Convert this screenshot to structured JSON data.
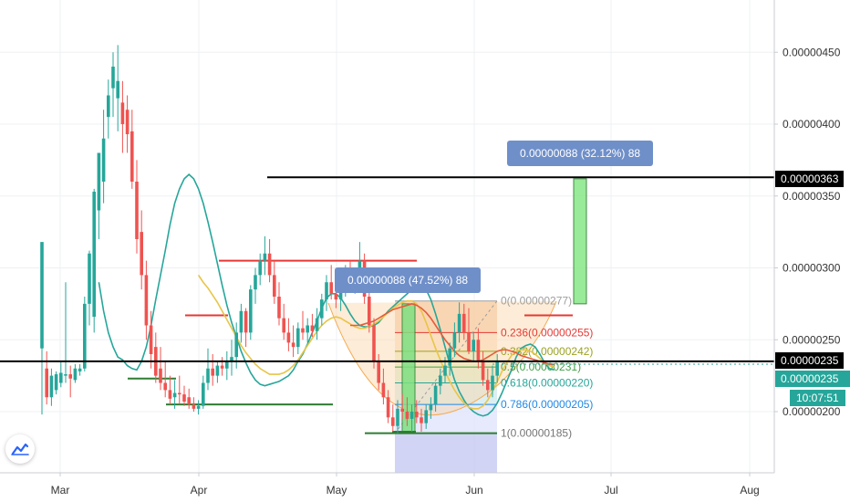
{
  "chart_data": {
    "type": "candlestick",
    "symbol_scale": "price",
    "x_axis": {
      "labels": [
        "Mar",
        "Apr",
        "May",
        "Jun",
        "Jul",
        "Aug"
      ]
    },
    "y_axis": {
      "position": "right",
      "ticks": [
        "0.00000450",
        "0.00000400",
        "0.00000350",
        "0.00000300",
        "0.00000250",
        "0.00000200"
      ],
      "range": [
        1.61e-06,
        4.79e-06
      ]
    },
    "candles": [
      {
        "o": 2.44,
        "h": 3.18,
        "l": 1.98,
        "c": 3.18
      },
      {
        "o": 2.3,
        "h": 2.42,
        "l": 2.05,
        "c": 2.1
      },
      {
        "o": 2.1,
        "h": 2.3,
        "l": 2.04,
        "c": 2.25
      },
      {
        "o": 2.15,
        "h": 2.28,
        "l": 2.12,
        "c": 2.26
      },
      {
        "o": 2.2,
        "h": 2.35,
        "l": 2.17,
        "c": 2.27
      },
      {
        "o": 2.25,
        "h": 2.9,
        "l": 2.2,
        "c": 2.26
      },
      {
        "o": 2.26,
        "h": 2.32,
        "l": 2.1,
        "c": 2.23
      },
      {
        "o": 2.22,
        "h": 2.33,
        "l": 2.2,
        "c": 2.3
      },
      {
        "o": 2.28,
        "h": 2.33,
        "l": 2.25,
        "c": 2.3
      },
      {
        "o": 2.3,
        "h": 2.8,
        "l": 2.28,
        "c": 2.75
      },
      {
        "o": 2.75,
        "h": 3.12,
        "l": 2.6,
        "c": 3.1
      },
      {
        "o": 2.66,
        "h": 3.55,
        "l": 2.55,
        "c": 3.53
      },
      {
        "o": 3.4,
        "h": 3.8,
        "l": 3.2,
        "c": 3.8
      },
      {
        "o": 3.6,
        "h": 4.1,
        "l": 3.45,
        "c": 3.9
      },
      {
        "o": 4.05,
        "h": 4.31,
        "l": 3.9,
        "c": 4.2
      },
      {
        "o": 4.25,
        "h": 4.5,
        "l": 4.05,
        "c": 4.4
      },
      {
        "o": 4.18,
        "h": 4.55,
        "l": 3.95,
        "c": 4.3
      },
      {
        "o": 4.15,
        "h": 4.3,
        "l": 3.8,
        "c": 4.0
      },
      {
        "o": 4.1,
        "h": 4.2,
        "l": 3.8,
        "c": 3.93
      },
      {
        "o": 3.95,
        "h": 4.1,
        "l": 3.55,
        "c": 3.6
      },
      {
        "o": 3.6,
        "h": 3.75,
        "l": 3.1,
        "c": 3.2
      },
      {
        "o": 3.25,
        "h": 3.4,
        "l": 2.85,
        "c": 2.95
      },
      {
        "o": 2.95,
        "h": 3.05,
        "l": 2.5,
        "c": 2.6
      },
      {
        "o": 2.6,
        "h": 2.7,
        "l": 2.3,
        "c": 2.4
      },
      {
        "o": 2.45,
        "h": 2.55,
        "l": 2.2,
        "c": 2.25
      },
      {
        "o": 2.3,
        "h": 2.45,
        "l": 2.15,
        "c": 2.2
      },
      {
        "o": 2.2,
        "h": 2.35,
        "l": 2.1,
        "c": 2.15
      },
      {
        "o": 2.15,
        "h": 2.25,
        "l": 2.05,
        "c": 2.09
      },
      {
        "o": 2.1,
        "h": 2.22,
        "l": 2.02,
        "c": 2.13
      },
      {
        "o": 2.13,
        "h": 2.25,
        "l": 2.05,
        "c": 2.12
      },
      {
        "o": 2.12,
        "h": 2.18,
        "l": 2.04,
        "c": 2.07
      },
      {
        "o": 2.1,
        "h": 2.16,
        "l": 2.02,
        "c": 2.05
      },
      {
        "o": 2.05,
        "h": 2.1,
        "l": 2.0,
        "c": 2.02
      },
      {
        "o": 2.02,
        "h": 2.08,
        "l": 1.98,
        "c": 2.04
      },
      {
        "o": 2.04,
        "h": 2.25,
        "l": 2.02,
        "c": 2.2
      },
      {
        "o": 2.2,
        "h": 2.44,
        "l": 2.15,
        "c": 2.3
      },
      {
        "o": 2.3,
        "h": 2.4,
        "l": 2.18,
        "c": 2.25
      },
      {
        "o": 2.25,
        "h": 2.35,
        "l": 2.2,
        "c": 2.32
      },
      {
        "o": 2.32,
        "h": 2.38,
        "l": 2.25,
        "c": 2.3
      },
      {
        "o": 2.3,
        "h": 2.42,
        "l": 2.22,
        "c": 2.35
      },
      {
        "o": 2.35,
        "h": 2.5,
        "l": 2.25,
        "c": 2.38
      },
      {
        "o": 2.38,
        "h": 2.62,
        "l": 2.3,
        "c": 2.55
      },
      {
        "o": 2.55,
        "h": 2.75,
        "l": 2.48,
        "c": 2.7
      },
      {
        "o": 2.7,
        "h": 2.72,
        "l": 2.45,
        "c": 2.55
      },
      {
        "o": 2.55,
        "h": 2.88,
        "l": 2.5,
        "c": 2.85
      },
      {
        "o": 2.85,
        "h": 3.0,
        "l": 2.75,
        "c": 2.95
      },
      {
        "o": 2.95,
        "h": 3.1,
        "l": 2.88,
        "c": 3.05
      },
      {
        "o": 3.05,
        "h": 3.22,
        "l": 2.95,
        "c": 3.1
      },
      {
        "o": 3.1,
        "h": 3.2,
        "l": 2.9,
        "c": 2.95
      },
      {
        "o": 2.95,
        "h": 3.05,
        "l": 2.75,
        "c": 2.8
      },
      {
        "o": 2.8,
        "h": 2.9,
        "l": 2.6,
        "c": 2.65
      },
      {
        "o": 2.65,
        "h": 2.75,
        "l": 2.5,
        "c": 2.55
      },
      {
        "o": 2.55,
        "h": 2.65,
        "l": 2.42,
        "c": 2.48
      },
      {
        "o": 2.48,
        "h": 2.6,
        "l": 2.38,
        "c": 2.45
      },
      {
        "o": 2.45,
        "h": 2.62,
        "l": 2.4,
        "c": 2.58
      },
      {
        "o": 2.58,
        "h": 2.7,
        "l": 2.5,
        "c": 2.55
      },
      {
        "o": 2.55,
        "h": 2.65,
        "l": 2.48,
        "c": 2.6
      },
      {
        "o": 2.6,
        "h": 2.68,
        "l": 2.52,
        "c": 2.56
      },
      {
        "o": 2.56,
        "h": 2.72,
        "l": 2.5,
        "c": 2.65
      },
      {
        "o": 2.65,
        "h": 2.82,
        "l": 2.6,
        "c": 2.78
      },
      {
        "o": 2.78,
        "h": 2.95,
        "l": 2.7,
        "c": 2.9
      },
      {
        "o": 2.9,
        "h": 3.02,
        "l": 2.78,
        "c": 2.82
      },
      {
        "o": 2.82,
        "h": 2.95,
        "l": 2.72,
        "c": 2.78
      },
      {
        "o": 2.78,
        "h": 2.9,
        "l": 2.7,
        "c": 2.85
      },
      {
        "o": 2.85,
        "h": 3.02,
        "l": 2.8,
        "c": 2.96
      },
      {
        "o": 2.96,
        "h": 3.05,
        "l": 2.85,
        "c": 2.9
      },
      {
        "o": 2.9,
        "h": 3.0,
        "l": 2.82,
        "c": 2.92
      },
      {
        "o": 2.92,
        "h": 3.18,
        "l": 2.88,
        "c": 3.05
      },
      {
        "o": 3.05,
        "h": 3.1,
        "l": 2.75,
        "c": 2.8
      },
      {
        "o": 2.8,
        "h": 2.9,
        "l": 2.55,
        "c": 2.6
      },
      {
        "o": 2.6,
        "h": 2.65,
        "l": 2.3,
        "c": 2.35
      },
      {
        "o": 2.35,
        "h": 2.4,
        "l": 2.15,
        "c": 2.2
      },
      {
        "o": 2.2,
        "h": 2.3,
        "l": 2.05,
        "c": 2.1
      },
      {
        "o": 2.1,
        "h": 2.15,
        "l": 1.92,
        "c": 1.96
      },
      {
        "o": 1.96,
        "h": 2.05,
        "l": 1.86,
        "c": 1.9
      },
      {
        "o": 1.9,
        "h": 2.08,
        "l": 1.85,
        "c": 2.02
      },
      {
        "o": 2.02,
        "h": 2.12,
        "l": 1.95,
        "c": 2.0
      },
      {
        "o": 2.0,
        "h": 2.1,
        "l": 1.9,
        "c": 1.95
      },
      {
        "o": 1.95,
        "h": 2.05,
        "l": 1.86,
        "c": 2.0
      },
      {
        "o": 2.0,
        "h": 2.08,
        "l": 1.92,
        "c": 1.96
      },
      {
        "o": 1.96,
        "h": 2.02,
        "l": 1.86,
        "c": 1.92
      },
      {
        "o": 1.92,
        "h": 2.05,
        "l": 1.88,
        "c": 2.01
      },
      {
        "o": 2.01,
        "h": 2.1,
        "l": 1.95,
        "c": 2.05
      },
      {
        "o": 2.05,
        "h": 2.2,
        "l": 2.0,
        "c": 2.18
      },
      {
        "o": 2.18,
        "h": 2.3,
        "l": 2.12,
        "c": 2.25
      },
      {
        "o": 2.25,
        "h": 2.38,
        "l": 2.2,
        "c": 2.32
      },
      {
        "o": 2.32,
        "h": 2.48,
        "l": 2.25,
        "c": 2.44
      },
      {
        "o": 2.44,
        "h": 2.62,
        "l": 2.38,
        "c": 2.55
      },
      {
        "o": 2.55,
        "h": 2.76,
        "l": 2.48,
        "c": 2.68
      },
      {
        "o": 2.68,
        "h": 2.75,
        "l": 2.5,
        "c": 2.55
      },
      {
        "o": 2.55,
        "h": 2.72,
        "l": 2.4,
        "c": 2.42
      },
      {
        "o": 2.42,
        "h": 2.55,
        "l": 2.35,
        "c": 2.5
      },
      {
        "o": 2.5,
        "h": 2.58,
        "l": 2.3,
        "c": 2.35
      },
      {
        "o": 2.35,
        "h": 2.42,
        "l": 2.18,
        "c": 2.22
      },
      {
        "o": 2.22,
        "h": 2.3,
        "l": 2.1,
        "c": 2.15
      },
      {
        "o": 2.15,
        "h": 2.32,
        "l": 2.1,
        "c": 2.25
      },
      {
        "o": 2.25,
        "h": 2.4,
        "l": 2.2,
        "c": 2.35
      }
    ],
    "moving_averages": [
      {
        "color": "#26a69a",
        "values": [
          2.9,
          2.7,
          2.55,
          2.45,
          2.38,
          2.36,
          2.32,
          2.3,
          2.29,
          2.35,
          2.45,
          2.6,
          2.78,
          2.95,
          3.12,
          3.3,
          3.45,
          3.55,
          3.62,
          3.65,
          3.62,
          3.55,
          3.45,
          3.32,
          3.18,
          3.03,
          2.88,
          2.74,
          2.62,
          2.52,
          2.42,
          2.34,
          2.27,
          2.22,
          2.19,
          2.18,
          2.19,
          2.2,
          2.21,
          2.23,
          2.25,
          2.29,
          2.35,
          2.4,
          2.47,
          2.55,
          2.63,
          2.72,
          2.79,
          2.82,
          2.82,
          2.79,
          2.74,
          2.68,
          2.63,
          2.6,
          2.59,
          2.59,
          2.6,
          2.62,
          2.66,
          2.7,
          2.73,
          2.76,
          2.79,
          2.82,
          2.85,
          2.88,
          2.88,
          2.85,
          2.78,
          2.68,
          2.57,
          2.45,
          2.33,
          2.22,
          2.14,
          2.08,
          2.03,
          2.0,
          1.98,
          1.97,
          1.98,
          2.01,
          2.06,
          2.13,
          2.21,
          2.29,
          2.38,
          2.44,
          2.46,
          2.47,
          2.45,
          2.4,
          2.34,
          2.3,
          2.29
        ]
      },
      {
        "color": "#e8c547",
        "values": [
          null,
          null,
          null,
          null,
          null,
          null,
          null,
          null,
          null,
          null,
          null,
          null,
          null,
          null,
          null,
          null,
          null,
          null,
          null,
          null,
          null,
          2.95,
          2.9,
          2.86,
          2.81,
          2.76,
          2.7,
          2.64,
          2.58,
          2.52,
          2.46,
          2.41,
          2.37,
          2.33,
          2.3,
          2.28,
          2.26,
          2.26,
          2.26,
          2.27,
          2.29,
          2.32,
          2.36,
          2.41,
          2.46,
          2.51,
          2.56,
          2.6,
          2.63,
          2.65,
          2.66,
          2.65,
          2.63,
          2.61,
          2.59,
          2.58,
          2.58,
          2.59,
          2.61,
          2.63,
          2.66,
          2.69,
          2.72,
          2.74,
          2.76,
          2.77,
          2.77,
          2.75,
          2.7,
          2.62,
          2.53,
          2.44,
          2.36,
          2.28,
          2.21,
          2.15,
          2.1,
          2.06,
          2.03,
          2.02,
          2.02,
          2.04,
          2.08,
          2.14,
          2.21,
          2.28,
          2.34,
          2.39,
          2.42,
          2.43,
          2.43,
          2.42,
          2.4,
          2.37,
          2.34,
          2.32,
          2.31
        ]
      },
      {
        "color": "#e65a3c",
        "values": [
          null,
          null,
          null,
          null,
          null,
          null,
          null,
          null,
          null,
          null,
          null,
          null,
          null,
          null,
          null,
          null,
          null,
          null,
          null,
          null,
          null,
          null,
          null,
          null,
          null,
          null,
          null,
          null,
          null,
          null,
          null,
          null,
          null,
          null,
          null,
          null,
          null,
          null,
          null,
          null,
          null,
          null,
          null,
          null,
          null,
          null,
          null,
          null,
          null,
          null,
          null,
          null,
          null,
          2.6,
          2.6,
          2.6,
          2.61,
          2.62,
          2.63,
          2.65,
          2.67,
          2.69,
          2.71,
          2.72,
          2.73,
          2.74,
          2.75,
          2.74,
          2.72,
          2.69,
          2.65,
          2.6,
          2.55,
          2.5,
          2.46,
          2.42,
          2.39,
          2.37,
          2.36,
          2.35,
          2.35,
          2.36,
          2.38,
          2.4,
          2.42,
          2.43,
          2.43,
          2.42,
          2.41,
          2.39,
          2.38,
          2.37,
          2.36,
          2.35,
          2.34,
          2.33,
          2.33
        ]
      }
    ],
    "fibonacci": [
      {
        "label": "0(0.00000277)",
        "value": 2.77,
        "color": "#9e9e9e"
      },
      {
        "label": "0.236(0.00000255)",
        "value": 2.55,
        "color": "#e53935"
      },
      {
        "label": "0.382(0.00000242)",
        "value": 2.42,
        "color": "#9ba322"
      },
      {
        "label": "0.5(0.00000231)",
        "value": 2.31,
        "color": "#43a047"
      },
      {
        "label": "0.618(0.00000220)",
        "value": 2.2,
        "color": "#26a69a"
      },
      {
        "label": "0.786(0.00000205)",
        "value": 2.05,
        "color": "#1e88e5"
      },
      {
        "label": "1(0.00000185)",
        "value": 1.85,
        "color": "#757575"
      }
    ],
    "horizontal_lines": [
      {
        "value": 2.35,
        "color": "#000000",
        "badge": "0.00000235"
      },
      {
        "value": 3.63,
        "color": "#000000",
        "badge": "0.00000363"
      }
    ],
    "annotations": [
      {
        "text": "0.00000088 (47.52%) 88"
      },
      {
        "text": "0.00000088 (32.12%) 88"
      }
    ],
    "last_price_badge": "0.00000235",
    "countdown": "10:07:51",
    "colors": {
      "up": "#26a69a",
      "down": "#ef5350",
      "grid": "#eef0f3",
      "callout": "#6f8fc9",
      "last_price": "#26a69a"
    }
  }
}
